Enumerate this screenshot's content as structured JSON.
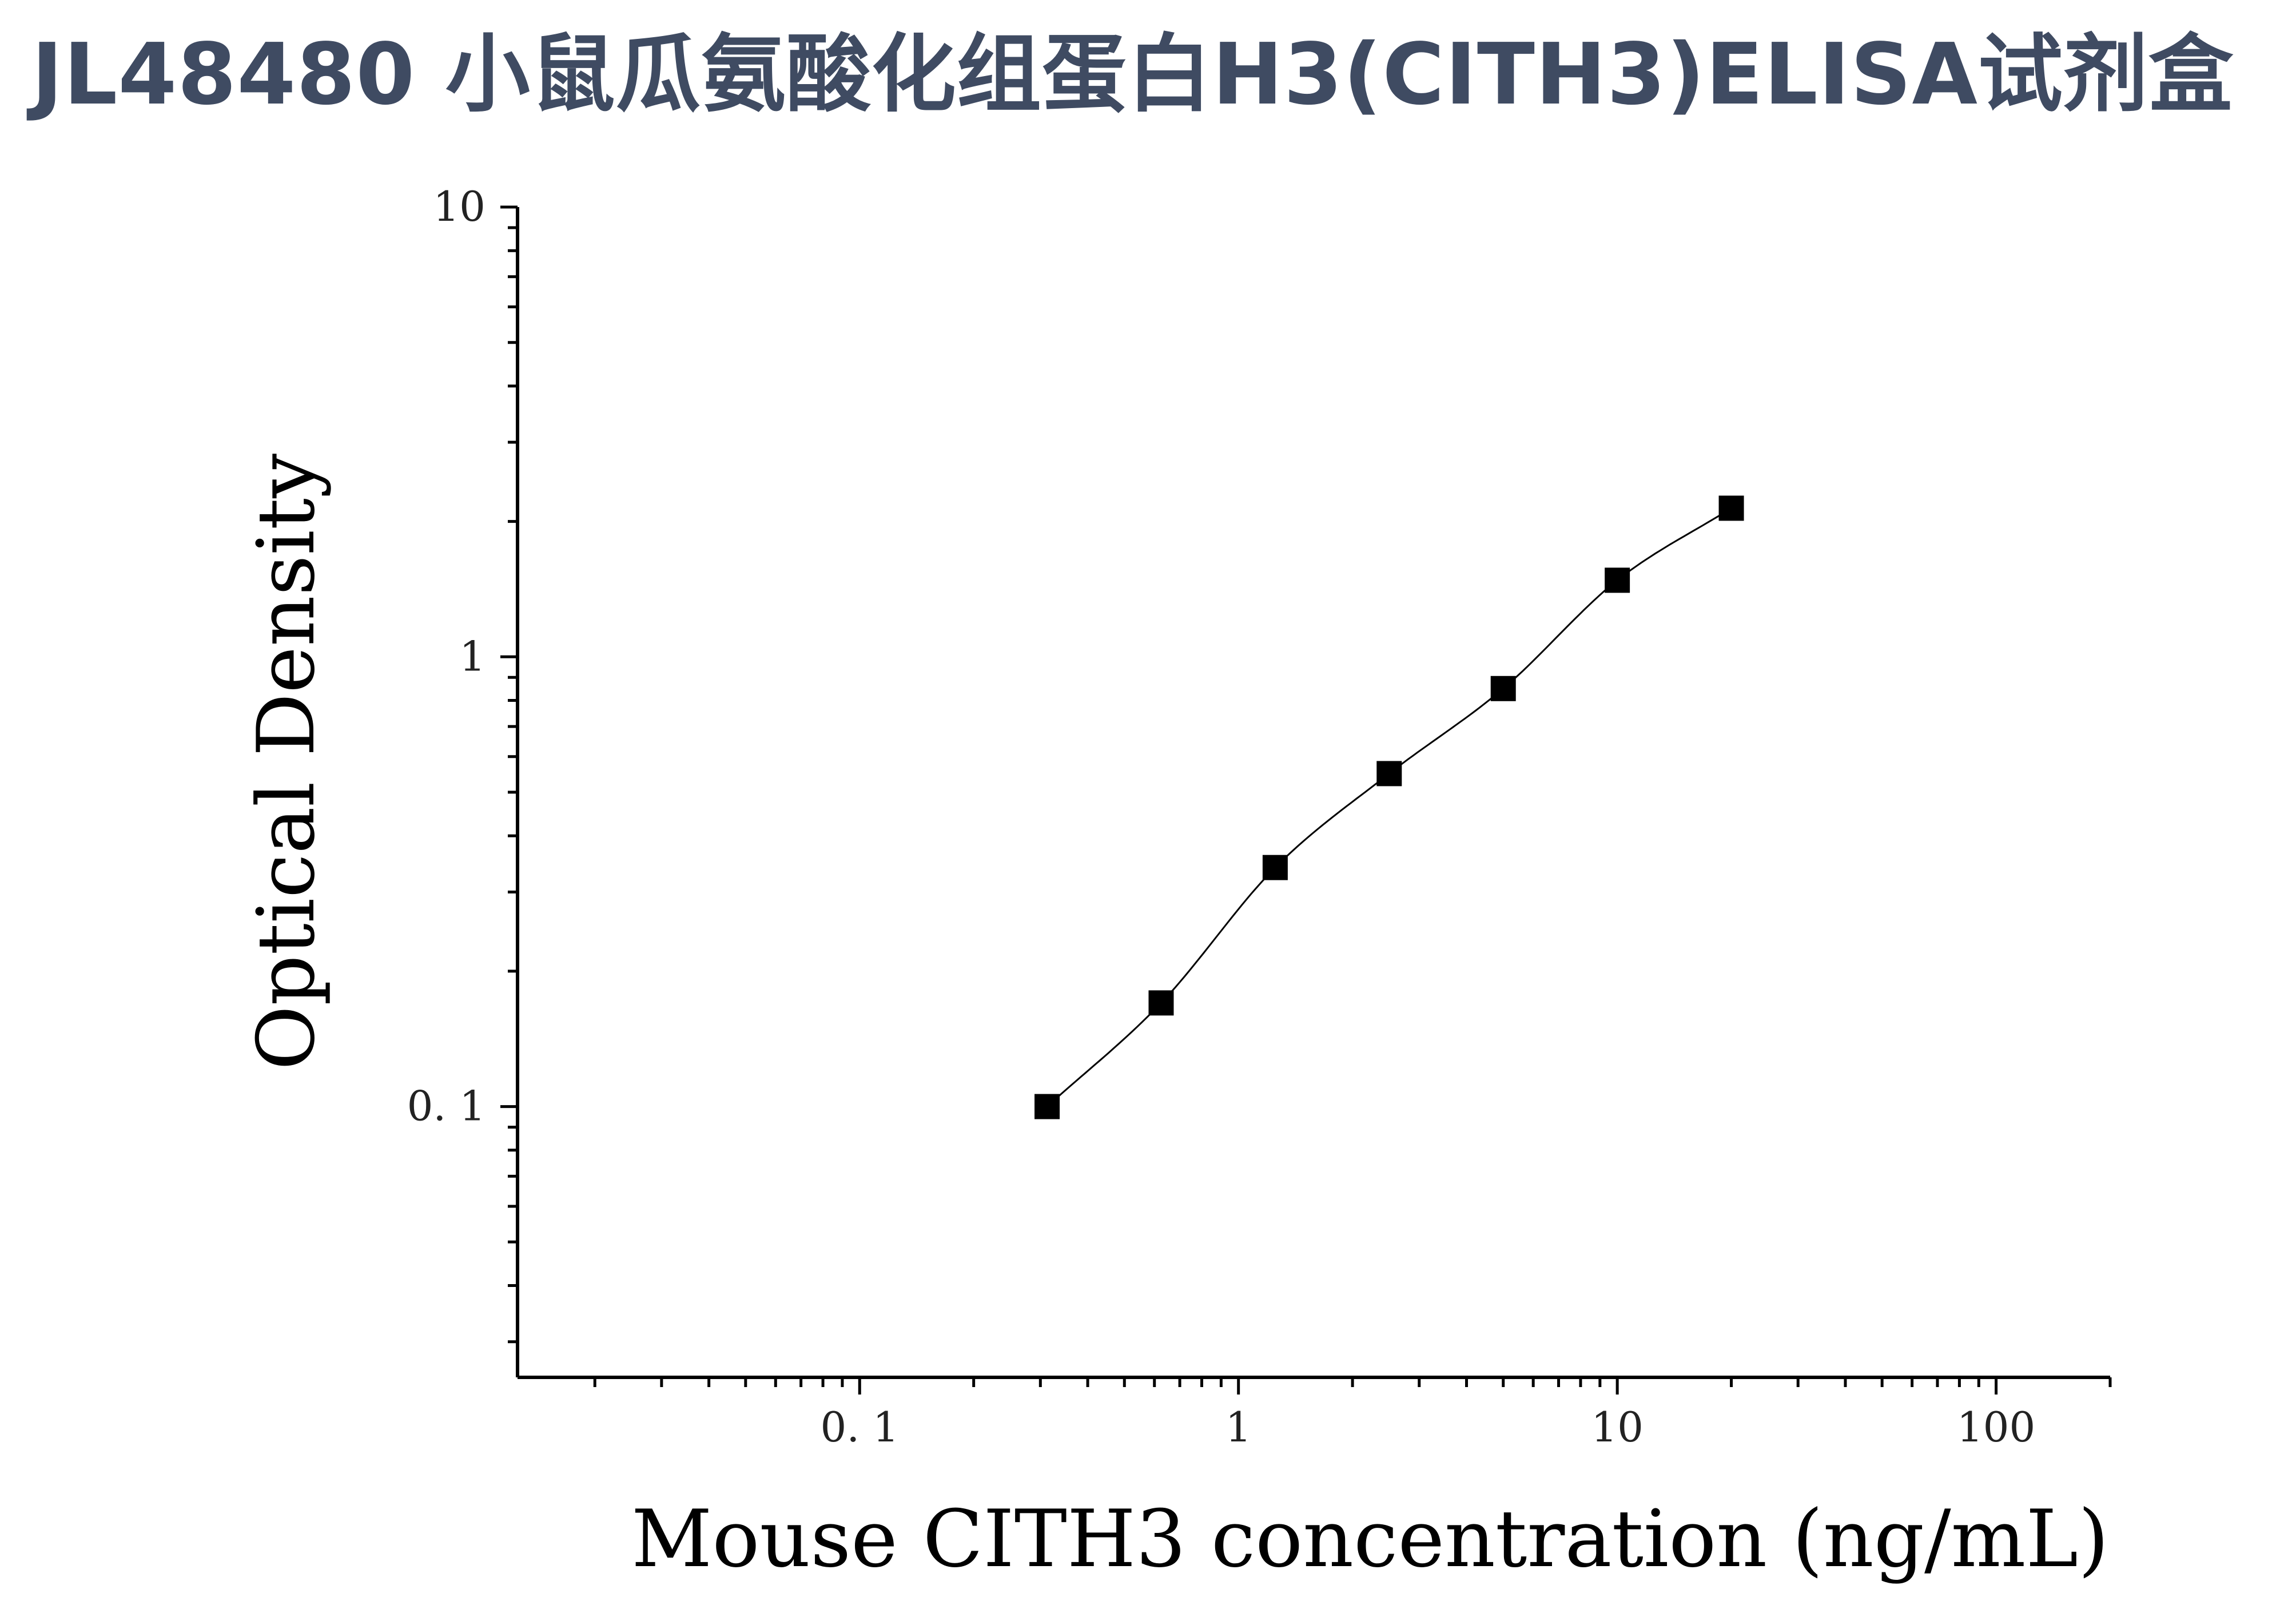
{
  "title": "JL48480 小鼠瓜氨酸化组蛋白H3(CITH3)ELISA试剂盒",
  "chart_data": {
    "type": "scatter",
    "title": "JL48480 小鼠瓜氨酸化组蛋白H3(CITH3)ELISA试剂盒",
    "xlabel": "Mouse CITH3 concentration (ng/mL)",
    "ylabel": "Optical Density",
    "xscale": "log",
    "yscale": "log",
    "xlim": [
      0.0125,
      200
    ],
    "ylim": [
      0.025,
      10
    ],
    "xticks": [
      {
        "value": 0.1,
        "label": "0. 1"
      },
      {
        "value": 1,
        "label": "1"
      },
      {
        "value": 10,
        "label": "10"
      },
      {
        "value": 100,
        "label": "100"
      }
    ],
    "yticks": [
      {
        "value": 0.1,
        "label": "0. 1"
      },
      {
        "value": 1,
        "label": "1"
      },
      {
        "value": 10,
        "label": "10"
      }
    ],
    "grid": false,
    "legend": "none",
    "marker": "square",
    "marker_color": "#000000",
    "line_color": "#000000",
    "series": [
      {
        "x": [
          0.3125,
          0.625,
          1.25,
          2.5,
          5,
          10,
          20
        ],
        "y": [
          0.1,
          0.17,
          0.34,
          0.55,
          0.85,
          1.48,
          2.14
        ],
        "fit": "smooth curve"
      }
    ]
  }
}
